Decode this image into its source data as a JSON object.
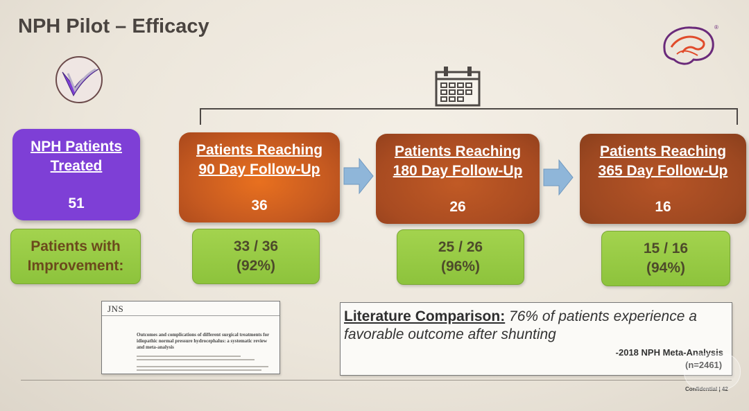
{
  "slide": {
    "title": "NPH Pilot – Efficacy",
    "treated": {
      "line1": "NPH Patients",
      "line2": "Treated",
      "count": "51"
    },
    "followups": [
      {
        "line1": "Patients Reaching",
        "line2": "90 Day Follow-Up",
        "count": "36",
        "ratio": "33 / 36",
        "percent": "(92%)"
      },
      {
        "line1": "Patients Reaching",
        "line2": "180 Day Follow-Up",
        "count": "26",
        "ratio": "25 / 26",
        "percent": "(96%)"
      },
      {
        "line1": "Patients Reaching",
        "line2": "365 Day Follow-Up",
        "count": "16",
        "ratio": "15 / 16",
        "percent": "(94%)"
      }
    ],
    "improvement_label": {
      "line1": "Patients with",
      "line2": "Improvement:"
    },
    "paper": {
      "journal": "JNS",
      "title": "Outcomes and complications of different surgical treatments for idiopathic normal pressure hydrocephalus: a systematic review and meta-analysis"
    },
    "literature": {
      "label": "Literature Comparison:",
      "text1": " 76% of patients experience a",
      "text2": "favorable outcome after shunting",
      "source": "-2018 NPH Meta-Analysis",
      "n": "(n=2461)"
    },
    "footer": "Confidential | 42",
    "colors": {
      "purple": "#7e3fd6",
      "orange": "#c65a20",
      "green": "#8dc33c",
      "arrow": "#8fb6d9"
    },
    "icons": [
      "brain-logo-icon",
      "check-emblem-icon",
      "calendar-icon",
      "arrow-right-icon"
    ]
  }
}
